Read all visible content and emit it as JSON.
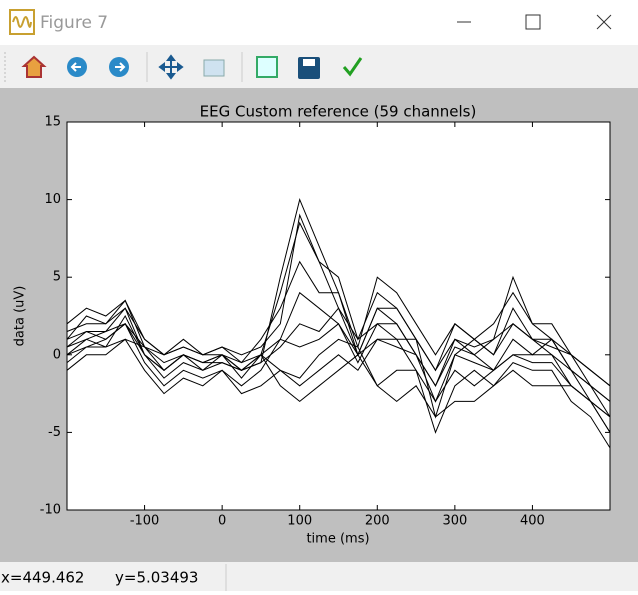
{
  "window": {
    "title": "Figure 7",
    "status": {
      "x": "x=449.462",
      "y": "y=5.03493"
    }
  },
  "chart_data": {
    "type": "line",
    "title": "EEG  Custom reference (59 channels)",
    "x_label": "time (ms)",
    "y_label": "data (uV)",
    "color": "#000000",
    "xlim": [
      -200,
      500
    ],
    "xticks": [
      -100,
      0,
      100,
      200,
      300,
      400
    ],
    "ylim": [
      -10,
      15
    ],
    "yticks": [
      -10,
      -5,
      0,
      5,
      10,
      15
    ],
    "x": [
      -200,
      -175,
      -150,
      -125,
      -100,
      -75,
      -50,
      -25,
      0,
      25,
      50,
      75,
      100,
      125,
      150,
      175,
      200,
      225,
      250,
      275,
      300,
      325,
      350,
      375,
      400,
      425,
      450,
      475,
      500
    ],
    "series": [
      {
        "values": [
          1,
          2.5,
          2,
          3.5,
          0.5,
          -1,
          0,
          -0.5,
          -0.5,
          -1,
          -0.5,
          5,
          10,
          7,
          4,
          0,
          3,
          2,
          0,
          -2,
          1,
          0,
          -1,
          1,
          0,
          1,
          -1,
          -2,
          -3
        ]
      },
      {
        "values": [
          0.5,
          1.5,
          1.5,
          3,
          0,
          -1.5,
          -0.5,
          -1,
          0,
          -1.5,
          0,
          4,
          8.5,
          6,
          5,
          1,
          4,
          3,
          1,
          -1,
          2,
          1,
          0,
          2,
          1,
          0,
          -2,
          -3,
          -4
        ]
      },
      {
        "values": [
          2,
          3,
          2.5,
          3.5,
          1,
          0,
          1,
          0,
          0.5,
          -0.5,
          1,
          3,
          6,
          4,
          4,
          0.5,
          5,
          4,
          2,
          0,
          2,
          1,
          2,
          4,
          2,
          2,
          0,
          -1,
          -2
        ]
      },
      {
        "values": [
          -0.5,
          0.5,
          1,
          2,
          -0.5,
          -2,
          -1,
          -1.5,
          -1,
          -2,
          -1,
          1,
          4,
          3,
          2,
          -0.5,
          2,
          2,
          0,
          -3,
          0,
          -0.5,
          -1,
          0,
          -0.5,
          -0.5,
          -2,
          -3,
          -5
        ]
      },
      {
        "values": [
          0,
          1,
          0.5,
          2.5,
          0,
          -1,
          0,
          -1,
          -0.5,
          -1,
          -0.5,
          0.5,
          2,
          1.5,
          3,
          0,
          3,
          3,
          1,
          -4,
          0,
          1,
          0,
          3,
          1,
          1,
          -1,
          -2,
          -4
        ]
      },
      {
        "values": [
          -1,
          0,
          0,
          1,
          -1,
          -2.5,
          -1.5,
          -2,
          -1,
          -2.5,
          -2,
          -1,
          -2,
          -1,
          0,
          -1,
          1,
          1,
          -1,
          -5,
          -2,
          -1,
          -2,
          -0.5,
          -1,
          -1,
          -3,
          -4,
          -6
        ]
      },
      {
        "values": [
          1,
          1.5,
          1,
          2,
          0.5,
          0,
          0.5,
          0,
          0,
          -1,
          0,
          -2,
          -3,
          -2,
          -1,
          0,
          -2,
          -1,
          -1,
          -3,
          -1,
          -2,
          -1,
          0,
          0,
          0,
          -1,
          -3,
          -4
        ]
      },
      {
        "values": [
          0,
          0.5,
          0.5,
          1,
          0.5,
          -0.5,
          0,
          -0.5,
          0,
          -1,
          0,
          -1,
          -1.5,
          0,
          1,
          0.5,
          -2,
          -3,
          -2,
          -4,
          -3,
          -3,
          -2,
          -1,
          -2,
          -2,
          -2,
          -3,
          -5
        ]
      },
      {
        "values": [
          1.5,
          2,
          2,
          3,
          1,
          0,
          0.5,
          0,
          0.5,
          0,
          0.5,
          2,
          9,
          6,
          3,
          1,
          2,
          1,
          1,
          -1,
          1,
          0.5,
          1,
          2,
          1,
          0.5,
          0,
          -2,
          -3
        ]
      },
      {
        "values": [
          0.5,
          1,
          1.5,
          2,
          0,
          -1,
          0,
          -0.5,
          0,
          -0.5,
          0,
          1,
          0.5,
          1,
          2,
          0,
          1,
          0.5,
          0,
          -2,
          0.5,
          0,
          1,
          5,
          2,
          1,
          0,
          -1,
          -2
        ]
      }
    ]
  }
}
